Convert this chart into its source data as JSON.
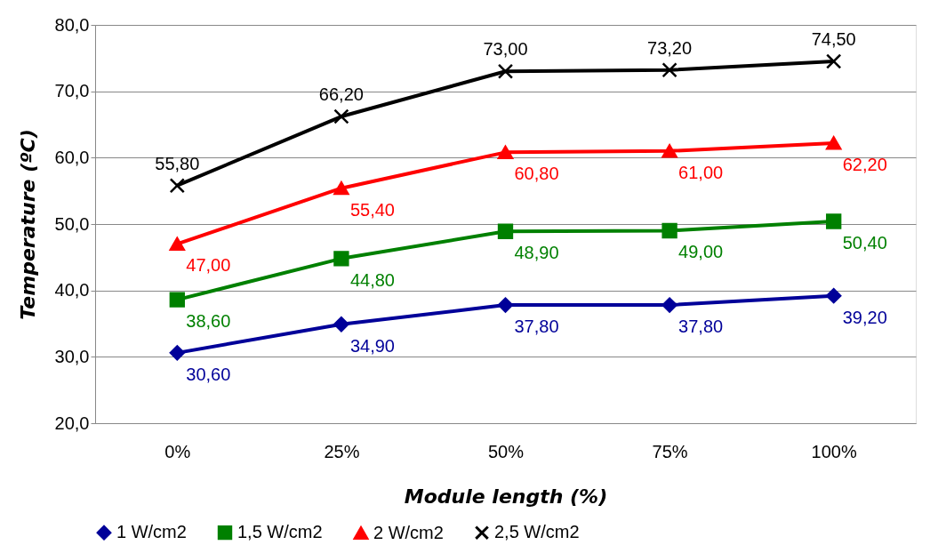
{
  "chart_data": {
    "type": "line",
    "xlabel": "Module length (%)",
    "ylabel": "Temperature (ºC)",
    "categories": [
      "0%",
      "25%",
      "50%",
      "75%",
      "100%"
    ],
    "ylim": [
      20,
      80
    ],
    "yticks": [
      {
        "value": 20,
        "label": "20,0"
      },
      {
        "value": 30,
        "label": "30,0"
      },
      {
        "value": 40,
        "label": "40,0"
      },
      {
        "value": 50,
        "label": "50,0"
      },
      {
        "value": 60,
        "label": "60,0"
      },
      {
        "value": 70,
        "label": "70,0"
      },
      {
        "value": 80,
        "label": "80,0"
      }
    ],
    "grid": "y",
    "legend": "bottom",
    "line_style": "solid",
    "series": [
      {
        "name": "1 W/cm2",
        "color": "#000099",
        "marker": "diamond",
        "values": [
          30.6,
          34.9,
          37.8,
          37.8,
          39.2
        ],
        "value_labels": [
          "30,60",
          "34,90",
          "37,80",
          "37,80",
          "39,20"
        ]
      },
      {
        "name": "1,5 W/cm2",
        "color": "#008000",
        "marker": "square",
        "values": [
          38.6,
          44.8,
          48.9,
          49.0,
          50.4
        ],
        "value_labels": [
          "38,60",
          "44,80",
          "48,90",
          "49,00",
          "50,40"
        ]
      },
      {
        "name": "2 W/cm2",
        "color": "#ff0000",
        "marker": "triangle",
        "values": [
          47.0,
          55.4,
          60.8,
          61.0,
          62.2
        ],
        "value_labels": [
          "47,00",
          "55,40",
          "60,80",
          "61,00",
          "62,20"
        ]
      },
      {
        "name": "2,5 W/cm2",
        "color": "#000000",
        "marker": "cross",
        "values": [
          55.8,
          66.2,
          73.0,
          73.2,
          74.5
        ],
        "value_labels": [
          "55,80",
          "66,20",
          "73,00",
          "73,20",
          "74,50"
        ]
      }
    ]
  }
}
